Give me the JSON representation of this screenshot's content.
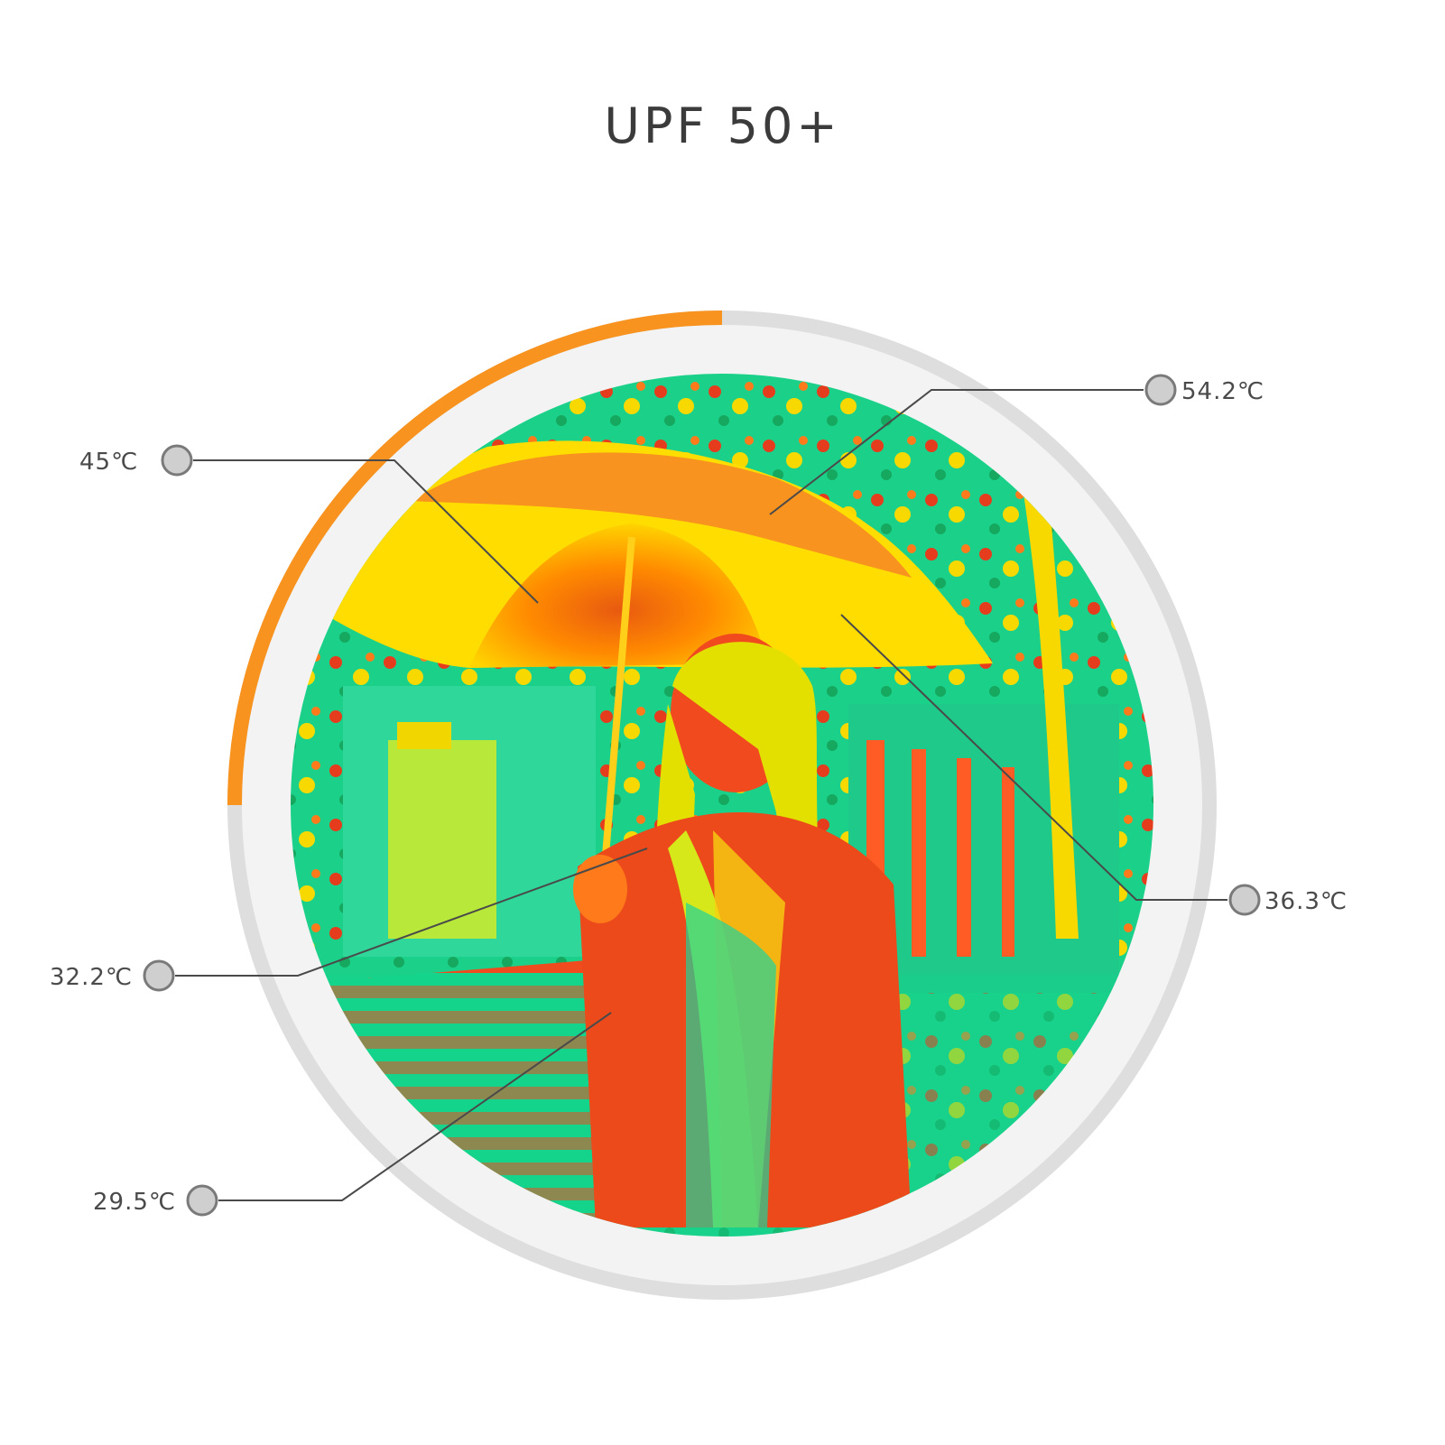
{
  "title": "UPF 50+",
  "colors": {
    "accent": "#f7931e",
    "ring_track": "#dedede",
    "ring_inner": "#f3f3f3",
    "marker_fill": "#cfcfcf",
    "marker_stroke": "#7a7a7a",
    "leader": "#4a4a4a"
  },
  "progress_arc_fraction": 0.25,
  "callouts": [
    {
      "id": "umbrella-top",
      "label": "54.2℃"
    },
    {
      "id": "umbrella-inner",
      "label": "45℃"
    },
    {
      "id": "umbrella-right",
      "label": "36.3℃"
    },
    {
      "id": "hand",
      "label": "32.2℃"
    },
    {
      "id": "body",
      "label": "29.5℃"
    }
  ],
  "thermal_image": {
    "subject": "thermal image of a girl holding an umbrella on a street"
  }
}
